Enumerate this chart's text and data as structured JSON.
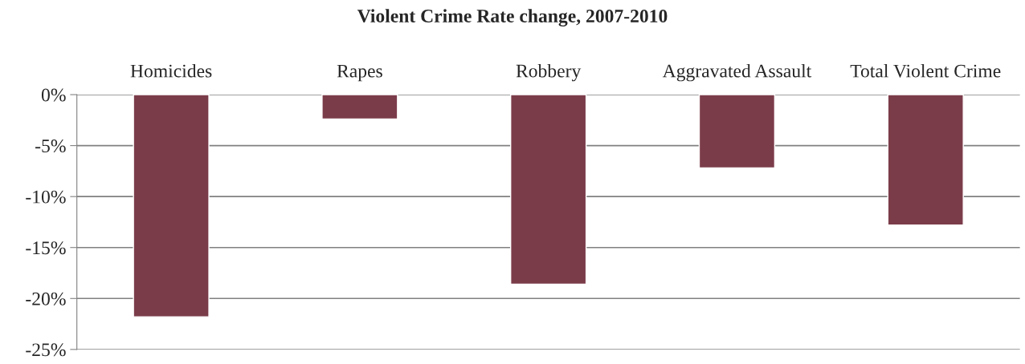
{
  "chart_data": {
    "type": "bar",
    "title": "Violent Crime Rate change, 2007-2010",
    "categories": [
      "Homicides",
      "Rapes",
      "Robbery",
      "Aggravated Assault",
      "Total Violent Crime"
    ],
    "series": [
      {
        "color": "#7b3c4a",
        "values": [
          -21.8,
          -2.4,
          -18.6,
          -7.2,
          -12.8
        ]
      }
    ],
    "ylim": [
      -25,
      0
    ],
    "yticks": [
      {
        "value": 0,
        "label": "0%"
      },
      {
        "value": -5,
        "label": "-5%"
      },
      {
        "value": -10,
        "label": "-10%"
      },
      {
        "value": -15,
        "label": "-15%"
      },
      {
        "value": -20,
        "label": "-20%"
      },
      {
        "value": -25,
        "label": "-25%"
      }
    ],
    "grid": "y",
    "legend": false
  }
}
